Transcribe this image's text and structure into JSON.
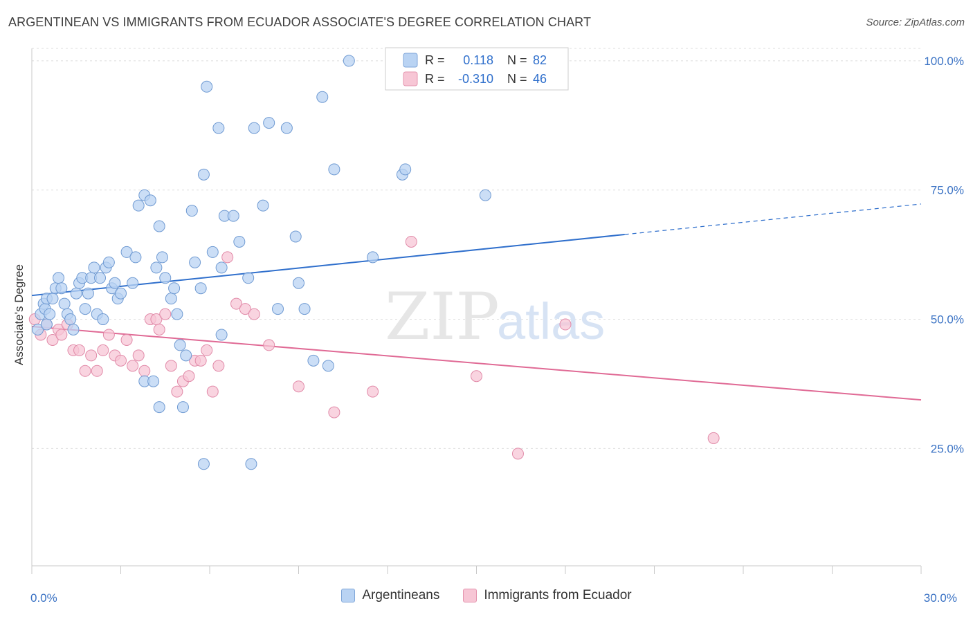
{
  "header": {
    "title": "ARGENTINEAN VS IMMIGRANTS FROM ECUADOR ASSOCIATE'S DEGREE CORRELATION CHART",
    "source": "Source: ZipAtlas.com"
  },
  "watermark": {
    "zip": "ZIP",
    "atlas": "atlas"
  },
  "colors": {
    "blue_fill": "#b9d3f3",
    "blue_stroke": "#6f9ad2",
    "blue_line": "#2f6fcc",
    "pink_fill": "#f7c6d5",
    "pink_stroke": "#e18aa8",
    "pink_line": "#e06a95",
    "axis_label": "#3a72c4",
    "grid": "#dedede"
  },
  "legend_box": {
    "rows": [
      {
        "r_label": "R =",
        "r_value": "0.118",
        "n_label": "N =",
        "n_value": "82"
      },
      {
        "r_label": "R =",
        "r_value": "-0.310",
        "n_label": "N =",
        "n_value": "46"
      }
    ]
  },
  "bottom_legend": {
    "items": [
      "Argentineans",
      "Immigrants from Ecuador"
    ]
  },
  "chart_data": {
    "type": "scatter",
    "title": "ARGENTINEAN VS IMMIGRANTS FROM ECUADOR ASSOCIATE'S DEGREE CORRELATION CHART",
    "ylabel": "Associate's Degree",
    "xlabel": "",
    "xlim": [
      0,
      30
    ],
    "ylim": [
      2.3,
      102.4
    ],
    "x_tick_labels": [
      "0.0%",
      "30.0%"
    ],
    "y_tick_labels": [
      "100.0%",
      "75.0%",
      "50.0%",
      "25.0%"
    ],
    "y_ticks": [
      100,
      75,
      50,
      25
    ],
    "grid": true,
    "legend_position": "top-center",
    "series": [
      {
        "name": "Argentineans",
        "r": 0.118,
        "n": 82,
        "trend": {
          "x0": 0,
          "y0": 54.6,
          "x1": 20.0,
          "y1": 66.4,
          "dashed_to_x": 30,
          "dashed_y": 72.3
        },
        "points": [
          [
            0.2,
            48
          ],
          [
            0.3,
            51
          ],
          [
            0.4,
            53
          ],
          [
            0.45,
            52
          ],
          [
            0.5,
            49
          ],
          [
            0.5,
            54
          ],
          [
            0.6,
            51
          ],
          [
            0.7,
            54
          ],
          [
            0.8,
            56
          ],
          [
            0.9,
            58
          ],
          [
            1.0,
            56
          ],
          [
            1.1,
            53
          ],
          [
            1.2,
            51
          ],
          [
            1.3,
            50
          ],
          [
            1.4,
            48
          ],
          [
            1.5,
            55
          ],
          [
            1.6,
            57
          ],
          [
            1.7,
            58
          ],
          [
            1.8,
            52
          ],
          [
            1.9,
            55
          ],
          [
            2.0,
            58
          ],
          [
            2.1,
            60
          ],
          [
            2.2,
            51
          ],
          [
            2.3,
            58
          ],
          [
            2.4,
            50
          ],
          [
            2.5,
            60
          ],
          [
            2.6,
            61
          ],
          [
            2.7,
            56
          ],
          [
            2.8,
            57
          ],
          [
            2.9,
            54
          ],
          [
            3.0,
            55
          ],
          [
            3.2,
            63
          ],
          [
            3.4,
            57
          ],
          [
            3.5,
            62
          ],
          [
            3.6,
            72
          ],
          [
            3.8,
            74
          ],
          [
            4.0,
            73
          ],
          [
            4.2,
            60
          ],
          [
            4.3,
            68
          ],
          [
            4.4,
            62
          ],
          [
            4.5,
            58
          ],
          [
            4.7,
            54
          ],
          [
            4.8,
            56
          ],
          [
            4.9,
            51
          ],
          [
            5.0,
            45
          ],
          [
            5.2,
            43
          ],
          [
            5.4,
            71
          ],
          [
            5.5,
            61
          ],
          [
            5.7,
            56
          ],
          [
            5.8,
            78
          ],
          [
            5.9,
            95
          ],
          [
            6.1,
            63
          ],
          [
            6.3,
            87
          ],
          [
            6.4,
            60
          ],
          [
            6.5,
            70
          ],
          [
            6.8,
            70
          ],
          [
            7.0,
            65
          ],
          [
            7.3,
            58
          ],
          [
            7.5,
            87
          ],
          [
            7.8,
            72
          ],
          [
            8.0,
            88
          ],
          [
            8.3,
            52
          ],
          [
            8.6,
            87
          ],
          [
            8.9,
            66
          ],
          [
            9.0,
            57
          ],
          [
            9.2,
            52
          ],
          [
            9.5,
            42
          ],
          [
            9.8,
            93
          ],
          [
            10.0,
            41
          ],
          [
            10.2,
            79
          ],
          [
            10.7,
            100
          ],
          [
            11.5,
            62
          ],
          [
            12.5,
            78
          ],
          [
            12.6,
            79
          ],
          [
            15.3,
            74
          ],
          [
            3.8,
            38
          ],
          [
            4.1,
            38
          ],
          [
            4.3,
            33
          ],
          [
            5.1,
            33
          ],
          [
            5.8,
            22
          ],
          [
            6.4,
            47
          ],
          [
            7.4,
            22
          ]
        ]
      },
      {
        "name": "Immigrants from Ecuador",
        "r": -0.31,
        "n": 46,
        "trend": {
          "x0": 0,
          "y0": 48.6,
          "x1": 30,
          "y1": 34.4
        },
        "points": [
          [
            0.1,
            50
          ],
          [
            0.3,
            47
          ],
          [
            0.5,
            49
          ],
          [
            0.7,
            46
          ],
          [
            0.9,
            48
          ],
          [
            1.0,
            47
          ],
          [
            1.2,
            49
          ],
          [
            1.4,
            44
          ],
          [
            1.6,
            44
          ],
          [
            1.8,
            40
          ],
          [
            2.0,
            43
          ],
          [
            2.2,
            40
          ],
          [
            2.4,
            44
          ],
          [
            2.6,
            47
          ],
          [
            2.8,
            43
          ],
          [
            3.0,
            42
          ],
          [
            3.2,
            46
          ],
          [
            3.4,
            41
          ],
          [
            3.6,
            43
          ],
          [
            3.8,
            40
          ],
          [
            4.0,
            50
          ],
          [
            4.2,
            50
          ],
          [
            4.3,
            48
          ],
          [
            4.5,
            51
          ],
          [
            4.7,
            41
          ],
          [
            4.9,
            36
          ],
          [
            5.1,
            38
          ],
          [
            5.3,
            39
          ],
          [
            5.5,
            42
          ],
          [
            5.7,
            42
          ],
          [
            5.9,
            44
          ],
          [
            6.1,
            36
          ],
          [
            6.3,
            41
          ],
          [
            6.6,
            62
          ],
          [
            6.9,
            53
          ],
          [
            7.2,
            52
          ],
          [
            7.5,
            51
          ],
          [
            8.0,
            45
          ],
          [
            9.0,
            37
          ],
          [
            10.2,
            32
          ],
          [
            11.5,
            36
          ],
          [
            12.8,
            65
          ],
          [
            15.0,
            39
          ],
          [
            16.4,
            24
          ],
          [
            18.0,
            49
          ],
          [
            23.0,
            27
          ]
        ]
      }
    ]
  }
}
